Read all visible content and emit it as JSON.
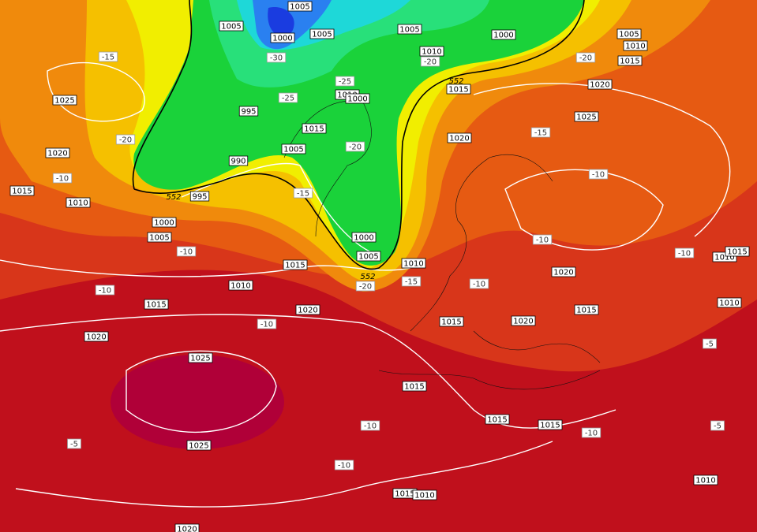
{
  "map": {
    "isobar_labels": [
      1005,
      1005,
      1000,
      1005,
      1005,
      1000,
      1005,
      1010,
      1015,
      1010,
      1020,
      1015,
      1025,
      1010,
      1000,
      995,
      1015,
      1025,
      1020,
      1005,
      1020,
      990,
      1015,
      995,
      1010,
      1000,
      1005,
      1000,
      1005,
      1010,
      1015,
      1010,
      1015,
      1020,
      1010,
      1015,
      1020,
      1015,
      1010,
      1015,
      1020,
      1020,
      1025,
      1015,
      1015,
      1015,
      1025,
      1010,
      1015,
      1010,
      1020
    ],
    "temperature_labels": [
      -15,
      -30,
      -20,
      -20,
      -25,
      -25,
      -15,
      -20,
      -20,
      -10,
      -10,
      -15,
      -10,
      -10,
      -10,
      -20,
      -15,
      -10,
      -10,
      -10,
      -5,
      -10,
      -10,
      -5,
      -5,
      -10
    ],
    "thickness_labels": [
      552,
      552,
      552
    ]
  }
}
